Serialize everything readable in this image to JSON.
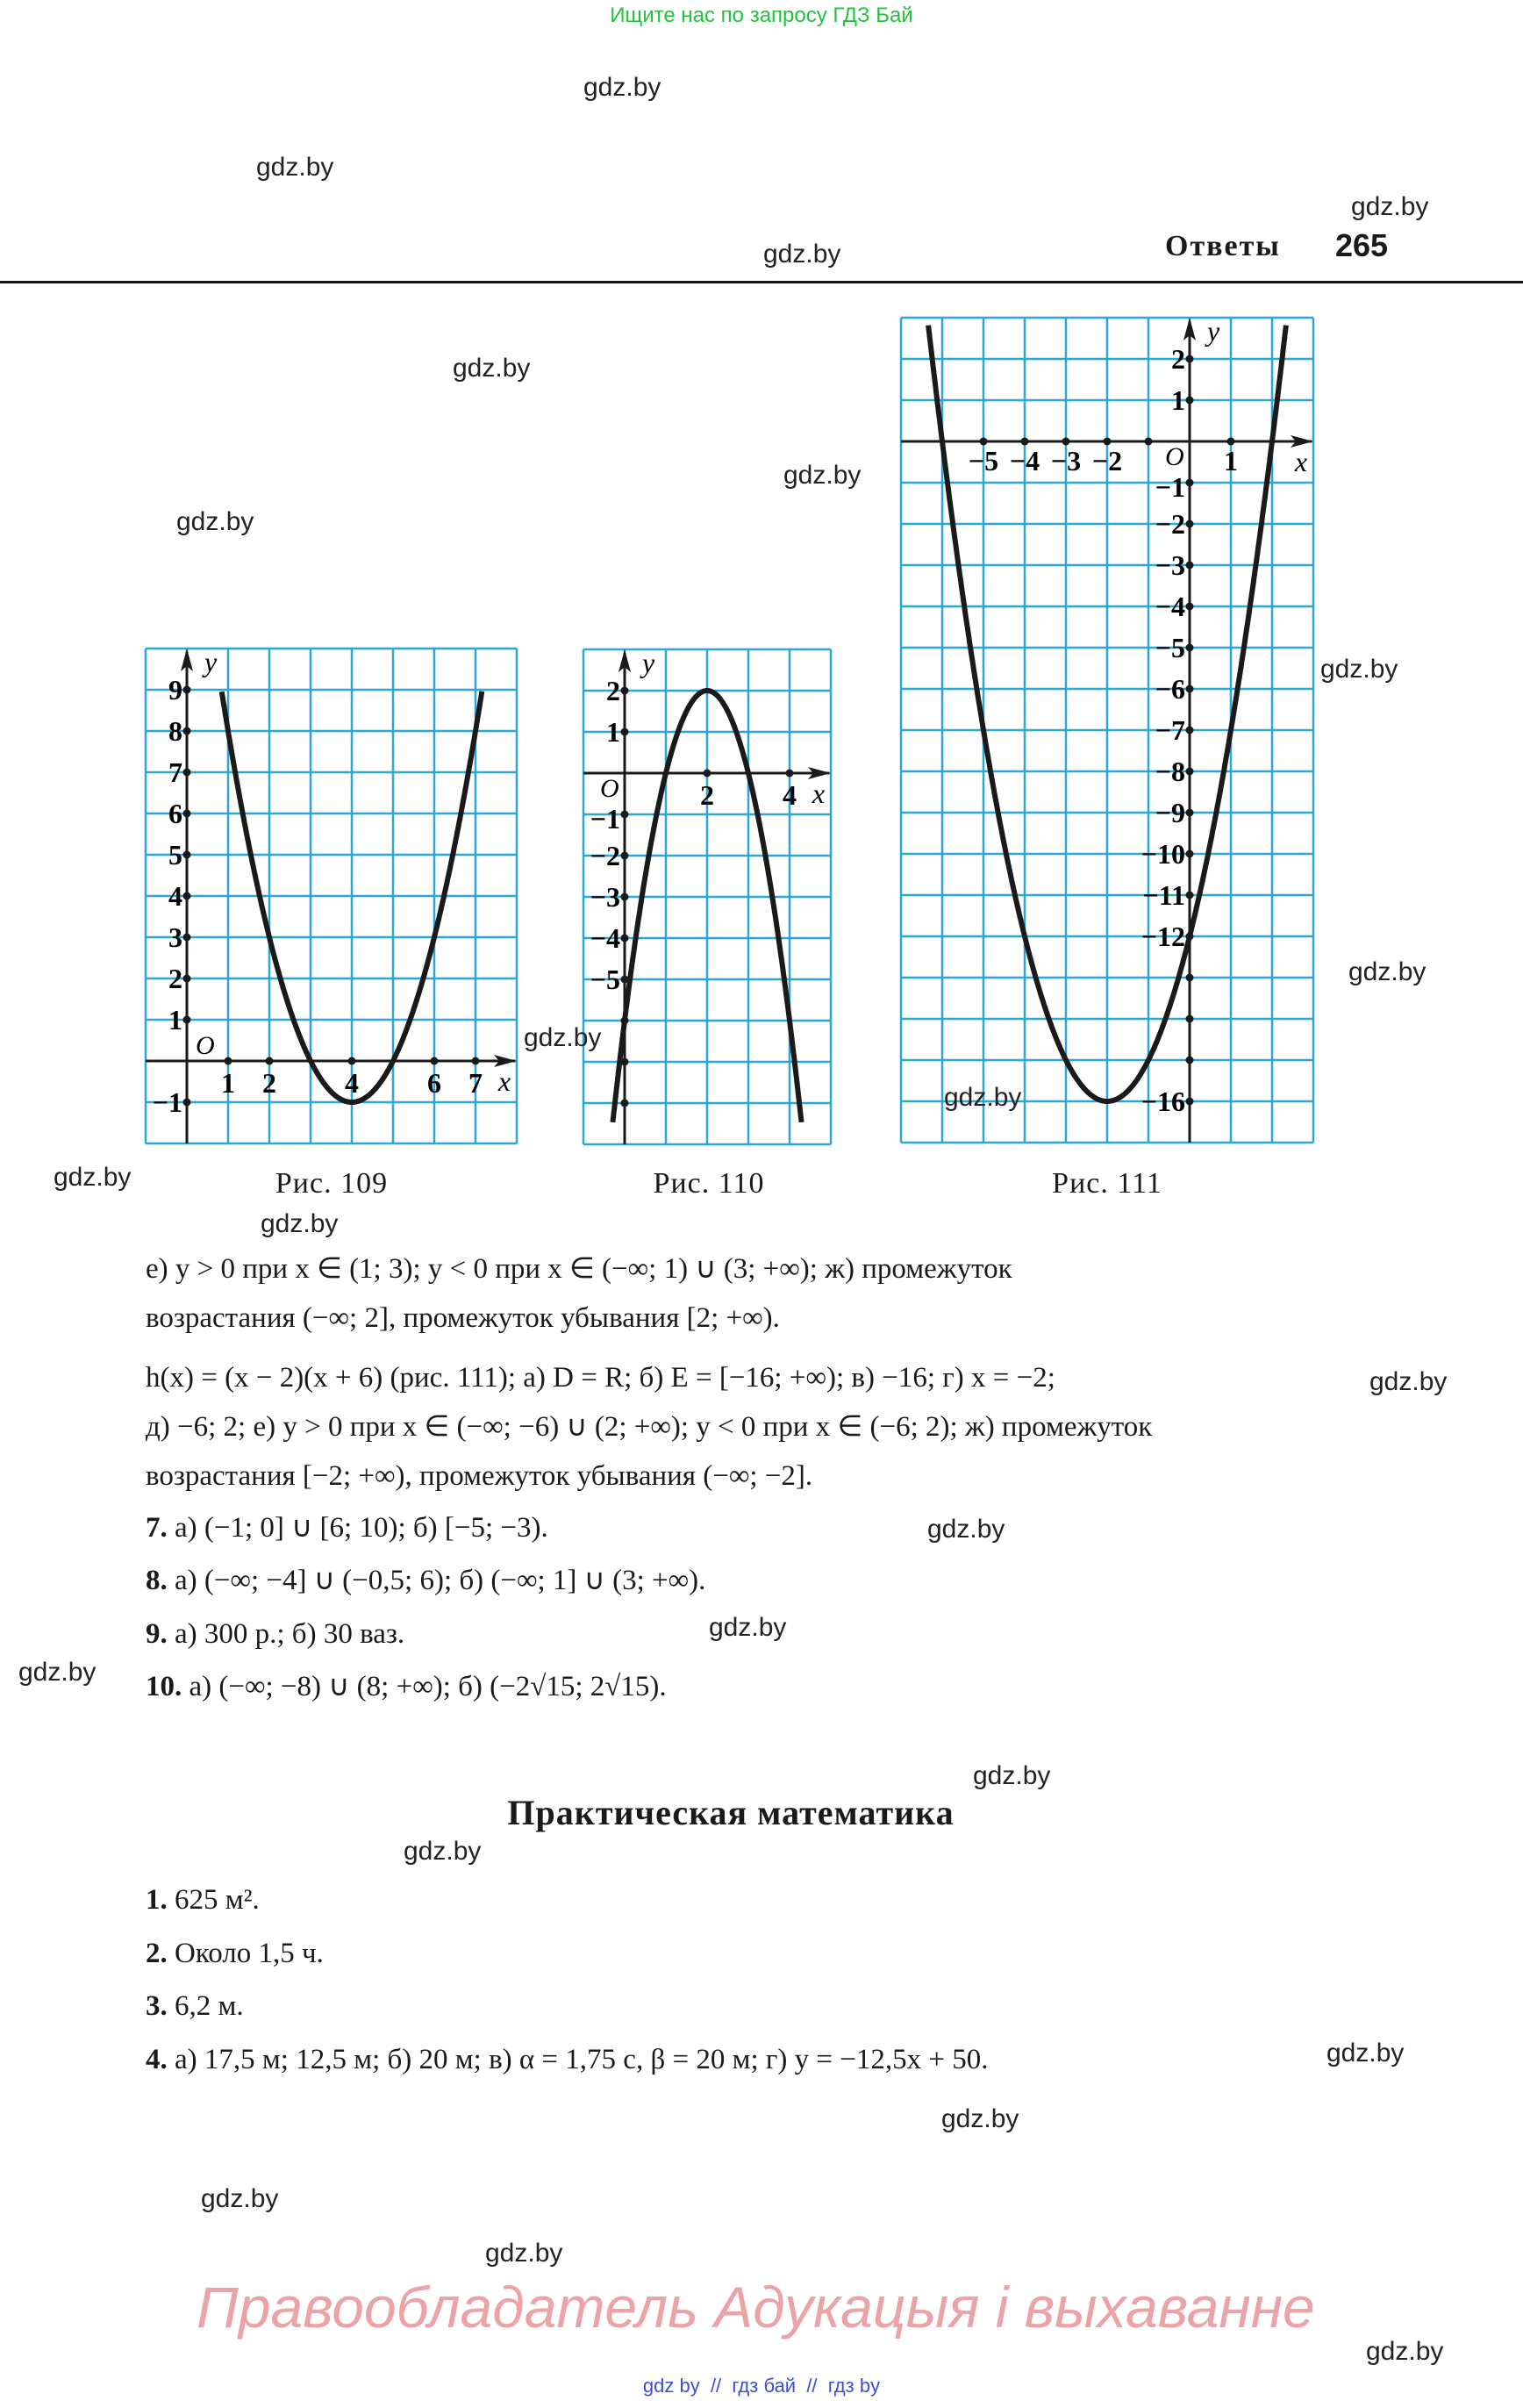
{
  "top_note": "Ищите нас по запросу ГДЗ Бай",
  "header": {
    "section": "Ответы",
    "page": "265"
  },
  "watermark": "gdz.by",
  "colors": {
    "grid": "#29a8d8",
    "curve": "#1a1a1a",
    "top_note": "#22c33a",
    "rights": "#eba3a8",
    "links": "#3a4fd6"
  },
  "chart_data": [
    {
      "type": "line",
      "caption": "Рис. 109",
      "function": "(x-4)^2-1",
      "xlim": [
        -1,
        8
      ],
      "ylim": [
        -2,
        10
      ],
      "grid": true,
      "xlabel": "x",
      "ylabel": "y",
      "origin_label": "O",
      "x_ticks": [
        {
          "v": 1,
          "label": "1"
        },
        {
          "v": 2,
          "label": "2"
        },
        {
          "v": 4,
          "label": "4"
        },
        {
          "v": 6,
          "label": "6"
        },
        {
          "v": 7,
          "label": "7"
        }
      ],
      "y_ticks": [
        {
          "v": 9,
          "label": "9"
        },
        {
          "v": 8,
          "label": "8"
        },
        {
          "v": 7,
          "label": "7"
        },
        {
          "v": 6,
          "label": "6"
        },
        {
          "v": 5,
          "label": "5"
        },
        {
          "v": 4,
          "label": "4"
        },
        {
          "v": 3,
          "label": "3"
        },
        {
          "v": 2,
          "label": "2"
        },
        {
          "v": 1,
          "label": "1"
        },
        {
          "v": -1,
          "label": "−1"
        }
      ],
      "curve_y_max": 9
    },
    {
      "type": "line",
      "caption": "Рис. 110",
      "function": "-2(x-1)(x-3)",
      "xlim": [
        -1,
        5
      ],
      "ylim": [
        -9,
        3
      ],
      "grid": true,
      "xlabel": "x",
      "ylabel": "y",
      "origin_label": "O",
      "x_ticks": [
        {
          "v": 2,
          "label": "2"
        },
        {
          "v": 4,
          "label": "4"
        }
      ],
      "y_ticks": [
        {
          "v": 2,
          "label": "2"
        },
        {
          "v": 1,
          "label": "1"
        },
        {
          "v": -1,
          "label": "−1"
        },
        {
          "v": -2,
          "label": "−2"
        },
        {
          "v": -3,
          "label": "−3"
        },
        {
          "v": -4,
          "label": "−4"
        },
        {
          "v": -5,
          "label": "−5"
        },
        {
          "v": -6,
          "label": ""
        },
        {
          "v": -7,
          "label": ""
        },
        {
          "v": -8,
          "label": ""
        }
      ],
      "curve_y_min": -8.5
    },
    {
      "type": "line",
      "caption": "Рис. 111",
      "function": "(x-2)(x+6)",
      "xlim": [
        -7,
        3
      ],
      "ylim": [
        -17,
        3
      ],
      "grid": true,
      "xlabel": "x",
      "ylabel": "y",
      "origin_label": "O",
      "x_ticks": [
        {
          "v": -5,
          "label": "−5"
        },
        {
          "v": -4,
          "label": "−4"
        },
        {
          "v": -3,
          "label": "−3"
        },
        {
          "v": -2,
          "label": "−2"
        },
        {
          "v": -1,
          "label": ""
        },
        {
          "v": 1,
          "label": "1"
        }
      ],
      "y_ticks": [
        {
          "v": 2,
          "label": "2"
        },
        {
          "v": 1,
          "label": "1"
        },
        {
          "v": -1,
          "label": "−1"
        },
        {
          "v": -2,
          "label": "−2"
        },
        {
          "v": -3,
          "label": "−3"
        },
        {
          "v": -4,
          "label": "−4"
        },
        {
          "v": -5,
          "label": "−5"
        },
        {
          "v": -6,
          "label": "−6"
        },
        {
          "v": -7,
          "label": "−7"
        },
        {
          "v": -8,
          "label": "−8"
        },
        {
          "v": -9,
          "label": "−9"
        },
        {
          "v": -10,
          "label": "−10"
        },
        {
          "v": -11,
          "label": "−11"
        },
        {
          "v": -12,
          "label": "−12"
        },
        {
          "v": -13,
          "label": ""
        },
        {
          "v": -14,
          "label": ""
        },
        {
          "v": -15,
          "label": ""
        },
        {
          "v": -16,
          "label": "−16"
        }
      ],
      "curve_y_max": 2.9
    }
  ],
  "answers": [
    {
      "num": "",
      "text": "е) y > 0 при x ∈ (1; 3); y < 0 при x ∈ (−∞; 1) ∪ (3; +∞); ж) промежуток"
    },
    {
      "num": "",
      "text": "возрастания (−∞; 2], промежуток убывания [2; +∞)."
    },
    {
      "num": "",
      "text": "h(x) = (x − 2)(x + 6) (рис. 111); а) D = R; б) E = [−16; +∞); в) −16; г) x = −2;"
    },
    {
      "num": "",
      "text": "д) −6; 2; е) y > 0 при x ∈ (−∞; −6) ∪ (2; +∞); y < 0 при x ∈ (−6; 2); ж) промежуток"
    },
    {
      "num": "",
      "text": "возрастания [−2; +∞), промежуток убывания (−∞; −2]."
    },
    {
      "num": "7.",
      "text": " а) (−1; 0] ∪ [6; 10); б) [−5; −3)."
    },
    {
      "num": "8.",
      "text": " а) (−∞; −4] ∪ (−0,5; 6); б) (−∞; 1] ∪ (3; +∞)."
    },
    {
      "num": "9.",
      "text": " а) 300 р.; б) 30 ваз."
    },
    {
      "num": "10.",
      "text": " а) (−∞; −8) ∪ (8; +∞); б) (−2√15; 2√15)."
    }
  ],
  "practical": {
    "heading": "Практическая математика",
    "items": [
      {
        "num": "1.",
        "text": " 625 м²."
      },
      {
        "num": "2.",
        "text": " Около 1,5 ч."
      },
      {
        "num": "3.",
        "text": " 6,2 м."
      },
      {
        "num": "4.",
        "text": " а) 17,5 м; 12,5 м; б) 20 м; в) α = 1,75 с, β = 20 м; г) y = −12,5x + 50."
      }
    ]
  },
  "rights_notice": "Правообладатель Адукацыя і выхаванне",
  "bottom_links": "gdz by  //  гдз бай  //  гдз by"
}
